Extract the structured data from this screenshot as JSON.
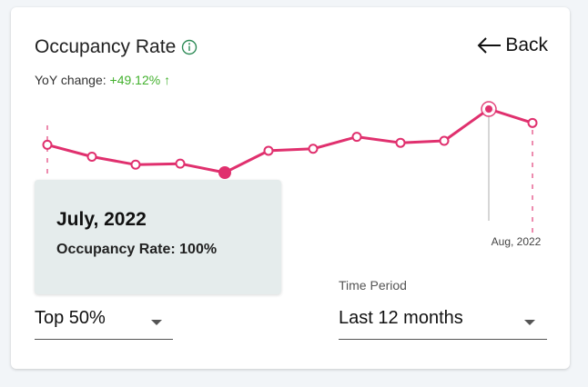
{
  "card": {
    "title": "Occupancy Rate",
    "info_icon": "info-circle-icon",
    "back_label": "Back",
    "back_icon": "arrow-left-icon",
    "yoy_label": "YoY change: ",
    "yoy_value": "+49.12% ↑"
  },
  "colors": {
    "line": "#e0306e",
    "positive": "#43b12e",
    "tooltip_bg": "#e5ecec"
  },
  "chart_data": {
    "type": "line",
    "series": [
      {
        "values": [
          60,
          54,
          50,
          50.5,
          46,
          57,
          58,
          64,
          61,
          62,
          78,
          71
        ]
      }
    ],
    "ylim": [
      0,
      100
    ],
    "highlighted_index": 10,
    "highlighted_label": "Aug, 2022",
    "hovered_index": 4
  },
  "tooltip": {
    "title": "July, 2022",
    "line": "Occupancy Rate: 100%"
  },
  "filter": {
    "value": "Top 50%"
  },
  "time_period": {
    "label": "Time Period",
    "value": "Last 12 months"
  }
}
